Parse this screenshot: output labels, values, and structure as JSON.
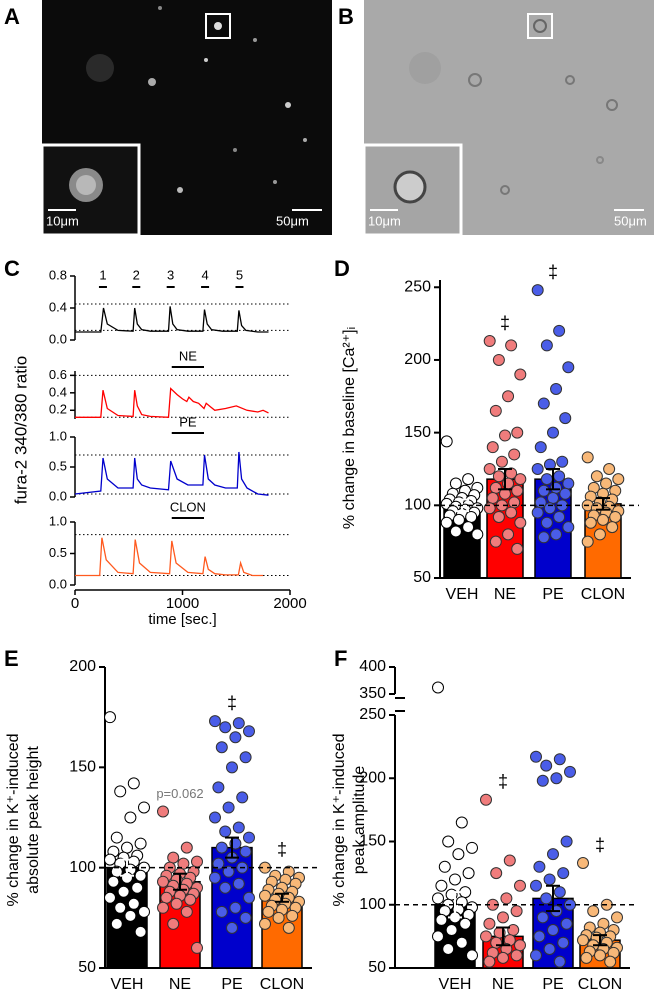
{
  "images": [
    {
      "label": "A",
      "inset_scale": "10μm",
      "scale": "50μm"
    },
    {
      "label": "B",
      "inset_scale": "10μm",
      "scale": "50μm"
    }
  ],
  "chart_data": [
    {
      "type": "line",
      "label": "C",
      "ylabel": "fura-2 340/380 ratio",
      "xlabel": "time [sec.]",
      "xlim": [
        0,
        2000
      ],
      "xticks": [
        0,
        1000,
        2000
      ],
      "subplots": [
        {
          "color": "#000000",
          "ylim": [
            0,
            0.8
          ],
          "yticks": [
            {
              "value": 0,
              "label": "0.0"
            },
            0.4,
            0.8
          ],
          "reference_lines": [
            0.45,
            0.12
          ],
          "markers": [
            {
              "label": "1",
              "x": 260
            },
            {
              "label": "2",
              "x": 570
            },
            {
              "label": "3",
              "x": 890
            },
            {
              "label": "4",
              "x": 1210
            },
            {
              "label": "5",
              "x": 1530
            }
          ],
          "x": [
            0,
            240,
            265,
            300,
            400,
            540,
            555,
            580,
            620,
            700,
            870,
            885,
            910,
            950,
            1050,
            1190,
            1205,
            1230,
            1270,
            1370,
            1510,
            1525,
            1550,
            1590,
            1700,
            1800
          ],
          "values": [
            0.1,
            0.1,
            0.4,
            0.2,
            0.12,
            0.11,
            0.4,
            0.2,
            0.13,
            0.11,
            0.11,
            0.42,
            0.2,
            0.13,
            0.11,
            0.11,
            0.38,
            0.2,
            0.13,
            0.11,
            0.11,
            0.37,
            0.18,
            0.12,
            0.1,
            0.1
          ]
        },
        {
          "color": "#ff0000",
          "ylim": [
            0.1,
            0.65
          ],
          "yticks": [
            0.2,
            0.4,
            0.6
          ],
          "reference_lines": [
            0.6,
            0.12
          ],
          "stimulus": {
            "label": "NE",
            "start": 900,
            "end": 1200
          },
          "x": [
            0,
            240,
            260,
            300,
            400,
            540,
            555,
            580,
            620,
            700,
            870,
            890,
            950,
            1000,
            1040,
            1060,
            1100,
            1150,
            1200,
            1220,
            1260,
            1300,
            1400,
            1500,
            1600,
            1700,
            1750,
            1800
          ],
          "values": [
            0.12,
            0.12,
            0.43,
            0.22,
            0.14,
            0.13,
            0.43,
            0.25,
            0.15,
            0.13,
            0.12,
            0.45,
            0.38,
            0.33,
            0.3,
            0.35,
            0.3,
            0.28,
            0.22,
            0.28,
            0.24,
            0.2,
            0.22,
            0.25,
            0.2,
            0.18,
            0.2,
            0.17
          ]
        },
        {
          "color": "#0000cc",
          "ylim": [
            0,
            1
          ],
          "yticks": [
            {
              "value": 0,
              "label": "0.0"
            },
            0.5,
            {
              "value": 1,
              "label": "1.0"
            }
          ],
          "reference_lines": [
            0.7,
            0.05
          ],
          "stimulus": {
            "label": "PE",
            "start": 900,
            "end": 1200
          },
          "x": [
            0,
            240,
            260,
            300,
            400,
            540,
            555,
            580,
            620,
            700,
            870,
            890,
            950,
            1050,
            1190,
            1205,
            1240,
            1300,
            1400,
            1510,
            1525,
            1550,
            1600,
            1700,
            1800
          ],
          "values": [
            0.05,
            0.1,
            0.65,
            0.3,
            0.15,
            0.15,
            0.65,
            0.3,
            0.2,
            0.15,
            0.12,
            0.6,
            0.3,
            0.2,
            0.2,
            0.7,
            0.3,
            0.2,
            0.15,
            0.15,
            0.75,
            0.3,
            0.15,
            0.05,
            0.03
          ]
        },
        {
          "color": "#ff5a1f",
          "ylim": [
            0,
            1
          ],
          "yticks": [
            {
              "value": 0,
              "label": "0.0"
            },
            0.5,
            {
              "value": 1,
              "label": "1.0"
            }
          ],
          "reference_lines": [
            0.8,
            0.15
          ],
          "stimulus": {
            "label": "CLON",
            "start": 900,
            "end": 1200
          },
          "x": [
            0,
            230,
            250,
            290,
            400,
            540,
            560,
            600,
            700,
            880,
            900,
            940,
            1050,
            1190,
            1210,
            1240,
            1300,
            1400,
            1520,
            1540,
            1570,
            1650,
            1750
          ],
          "values": [
            0.15,
            0.15,
            0.75,
            0.4,
            0.2,
            0.18,
            0.72,
            0.35,
            0.2,
            0.18,
            0.7,
            0.35,
            0.2,
            0.18,
            0.45,
            0.25,
            0.18,
            0.16,
            0.16,
            0.35,
            0.2,
            0.15,
            0.15
          ]
        }
      ]
    },
    {
      "type": "bar",
      "label": "D",
      "ylabel": [
        "% change in baseline [Ca²⁺]ᵢ"
      ],
      "categories": [
        "VEH",
        "NE",
        "PE",
        "CLON"
      ],
      "colors": [
        "#000000",
        "#ff0000",
        "#0000cc",
        "#ff6a00"
      ],
      "point_colors": [
        "#ffffff",
        "#f07c7c",
        "#4a5de8",
        "#f8b878"
      ],
      "values": [
        100,
        118,
        118,
        101
      ],
      "errors": [
        4,
        7,
        7,
        4
      ],
      "ylim": [
        50,
        255
      ],
      "yticks": [
        50,
        100,
        150,
        200,
        250
      ],
      "reference_line": 100,
      "significance": [
        null,
        "‡",
        "‡",
        null
      ],
      "points": [
        [
          144,
          118,
          115,
          112,
          110,
          108,
          107,
          105,
          104,
          103,
          102,
          101,
          100,
          99,
          98,
          97,
          96,
          95,
          94,
          93,
          92,
          90,
          88,
          85,
          82,
          80
        ],
        [
          213,
          210,
          200,
          190,
          175,
          165,
          150,
          148,
          140,
          135,
          130,
          125,
          122,
          120,
          118,
          115,
          112,
          110,
          108,
          105,
          102,
          100,
          98,
          95,
          92,
          88,
          80,
          75,
          70
        ],
        [
          248,
          220,
          210,
          195,
          180,
          170,
          160,
          150,
          140,
          130,
          128,
          125,
          120,
          118,
          115,
          112,
          110,
          108,
          105,
          102,
          100,
          98,
          95,
          92,
          88,
          85,
          80,
          78
        ],
        [
          133,
          125,
          120,
          118,
          115,
          112,
          110,
          108,
          106,
          104,
          102,
          100,
          99,
          98,
          96,
          95,
          93,
          92,
          90,
          88,
          85,
          80,
          75
        ]
      ]
    },
    {
      "type": "bar",
      "label": "E",
      "ylabel": [
        "% change in K⁺-induced",
        "absolute peak height"
      ],
      "categories": [
        "VEH",
        "NE",
        "PE",
        "CLON"
      ],
      "colors": [
        "#000000",
        "#ff0000",
        "#0000cc",
        "#ff6a00"
      ],
      "point_colors": [
        "#ffffff",
        "#f07c7c",
        "#4a5de8",
        "#f8b878"
      ],
      "values": [
        100,
        93,
        110,
        85
      ],
      "errors": [
        4,
        4,
        5,
        2
      ],
      "ylim": [
        50,
        200
      ],
      "yticks": [
        50,
        100,
        150,
        200
      ],
      "reference_line": 100,
      "significance": [
        null,
        "p=0.062",
        "‡",
        "‡"
      ],
      "points": [
        [
          175,
          142,
          138,
          130,
          125,
          115,
          112,
          110,
          108,
          106,
          105,
          104,
          103,
          102,
          100,
          99,
          98,
          96,
          95,
          93,
          90,
          88,
          85,
          82,
          80,
          78,
          76,
          72,
          68
        ],
        [
          128,
          110,
          105,
          103,
          102,
          100,
          98,
          97,
          96,
          95,
          94,
          93,
          92,
          91,
          90,
          89,
          88,
          87,
          86,
          85,
          84,
          82,
          80,
          78,
          72,
          60
        ],
        [
          173,
          172,
          170,
          168,
          165,
          160,
          155,
          150,
          140,
          135,
          130,
          125,
          120,
          118,
          115,
          112,
          110,
          108,
          105,
          102,
          100,
          98,
          95,
          92,
          90,
          85,
          80,
          78,
          75,
          70
        ],
        [
          100,
          98,
          96,
          95,
          94,
          93,
          92,
          90,
          89,
          88,
          87,
          86,
          85,
          84,
          83,
          82,
          81,
          80,
          79,
          78,
          76,
          75,
          72,
          70
        ]
      ]
    },
    {
      "type": "bar",
      "label": "F",
      "ylabel": [
        "% change in K⁺-induced",
        "peak amplitude"
      ],
      "categories": [
        "VEH",
        "NE",
        "PE",
        "CLON"
      ],
      "colors": [
        "#000000",
        "#ff0000",
        "#0000cc",
        "#ff6a00"
      ],
      "point_colors": [
        "#ffffff",
        "#f07c7c",
        "#4a5de8",
        "#f8b878"
      ],
      "values": [
        100,
        75,
        105,
        72
      ],
      "errors": [
        10,
        7,
        10,
        4
      ],
      "ylim": [
        50,
        400
      ],
      "axis_break": [
        250,
        350
      ],
      "yticks": [
        50,
        100,
        150,
        200,
        250,
        350,
        400
      ],
      "reference_line": 100,
      "significance": [
        null,
        "‡",
        null,
        "‡"
      ],
      "points": [
        [
          362,
          165,
          150,
          145,
          140,
          130,
          125,
          120,
          115,
          110,
          108,
          105,
          102,
          100,
          98,
          96,
          95,
          92,
          90,
          88,
          85,
          80,
          75,
          70,
          65,
          60
        ],
        [
          183,
          135,
          125,
          115,
          105,
          100,
          95,
          90,
          85,
          80,
          78,
          75,
          72,
          70,
          68,
          65,
          62,
          60,
          58,
          55
        ],
        [
          217,
          215,
          210,
          205,
          200,
          198,
          150,
          140,
          130,
          125,
          120,
          115,
          110,
          105,
          100,
          95,
          90,
          85,
          80,
          75,
          70,
          65,
          60,
          55
        ],
        [
          133,
          100,
          95,
          90,
          85,
          82,
          80,
          78,
          76,
          75,
          74,
          72,
          70,
          68,
          66,
          65,
          63,
          62,
          60,
          58,
          55
        ]
      ]
    }
  ]
}
